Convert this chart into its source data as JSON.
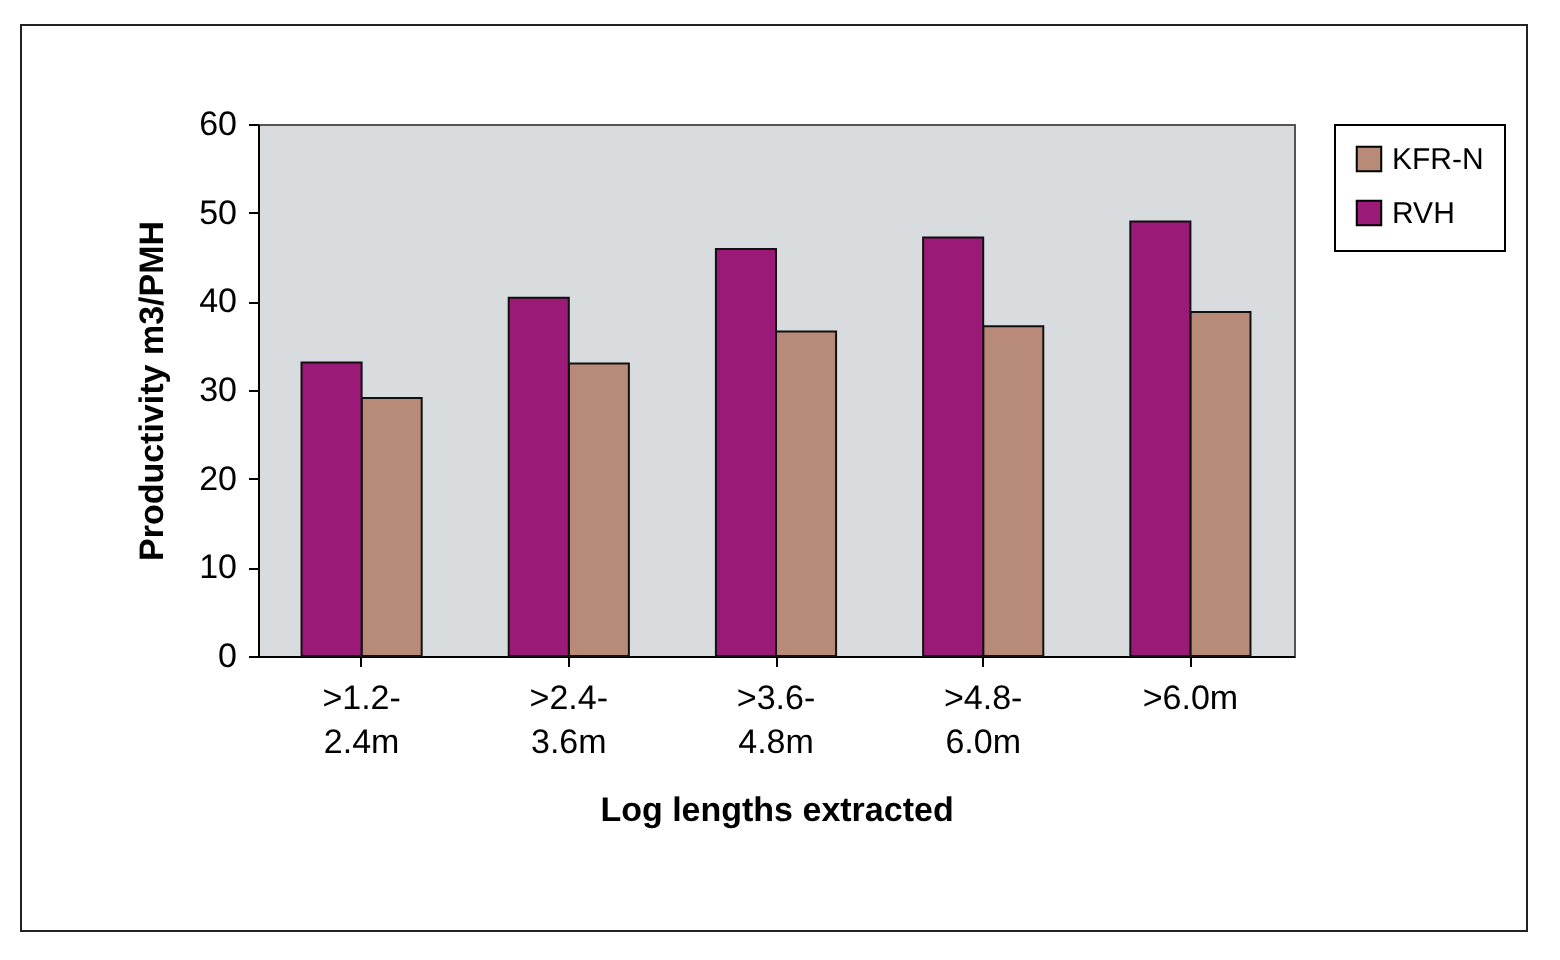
{
  "chart_data": {
    "type": "bar",
    "xlabel": "Log lengths extracted",
    "ylabel": "Productivity m3/PMH",
    "categories": [
      ">1.2-2.4m",
      ">2.4-3.6m",
      ">3.6-4.8m",
      ">4.8-6.0m",
      ">6.0m"
    ],
    "series": [
      {
        "name": "KFR-N",
        "color": "#b88a78",
        "values": [
          29.1,
          33.0,
          36.6,
          37.2,
          38.8
        ]
      },
      {
        "name": "RVH",
        "color": "#9b1a78",
        "values": [
          33.1,
          40.4,
          45.9,
          47.2,
          49.0
        ]
      }
    ],
    "ylim": [
      0,
      60
    ],
    "yticks": [
      0,
      10,
      20,
      30,
      40,
      50,
      60
    ],
    "grid": false,
    "legend": "right"
  }
}
